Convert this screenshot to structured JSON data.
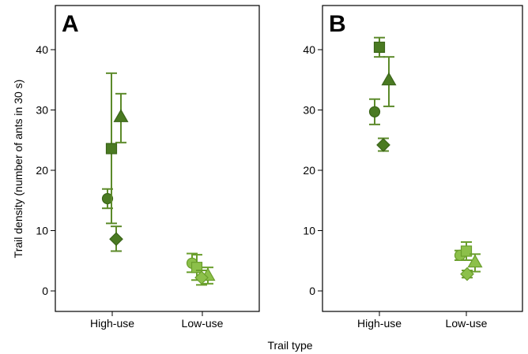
{
  "figure": {
    "ylabel": "Trail density (number of ants in 30 s)",
    "xlabel": "Trail type"
  },
  "colors": {
    "high_use": "#4a7a22",
    "high_use_stroke": "#3a6418",
    "low_use": "#8cc04a",
    "low_use_stroke": "#6a9e2c",
    "error_bar": "#5c8a2a",
    "axis": "#000000"
  },
  "chart_data": [
    {
      "panel": "A",
      "type": "scatter",
      "categories": [
        "High-use",
        "Low-use"
      ],
      "ylim": [
        0,
        45
      ],
      "yticks": [
        0,
        10,
        20,
        30,
        40
      ],
      "series": [
        {
          "marker": "circle",
          "points": [
            {
              "category": "High-use",
              "y": 15.3,
              "lower": 13.7,
              "upper": 16.9
            },
            {
              "category": "Low-use",
              "y": 4.6,
              "lower": 3.1,
              "upper": 6.2
            }
          ]
        },
        {
          "marker": "square",
          "points": [
            {
              "category": "High-use",
              "y": 23.6,
              "lower": 11.2,
              "upper": 36.1
            },
            {
              "category": "Low-use",
              "y": 3.9,
              "lower": 1.8,
              "upper": 6.0
            }
          ]
        },
        {
          "marker": "triangle",
          "points": [
            {
              "category": "High-use",
              "y": 28.9,
              "lower": 24.6,
              "upper": 32.7
            },
            {
              "category": "Low-use",
              "y": 2.6,
              "lower": 1.2,
              "upper": 3.9
            }
          ]
        },
        {
          "marker": "diamond",
          "points": [
            {
              "category": "High-use",
              "y": 8.6,
              "lower": 6.6,
              "upper": 10.7
            },
            {
              "category": "Low-use",
              "y": 2.2,
              "lower": 1.0,
              "upper": 3.4
            }
          ]
        }
      ]
    },
    {
      "panel": "B",
      "type": "scatter",
      "categories": [
        "High-use",
        "Low-use"
      ],
      "ylim": [
        0,
        45
      ],
      "yticks": [
        0,
        10,
        20,
        30,
        40
      ],
      "series": [
        {
          "marker": "circle",
          "points": [
            {
              "category": "High-use",
              "y": 29.7,
              "lower": 27.6,
              "upper": 31.8
            },
            {
              "category": "Low-use",
              "y": 5.9,
              "lower": 5.1,
              "upper": 6.7
            }
          ]
        },
        {
          "marker": "square",
          "points": [
            {
              "category": "High-use",
              "y": 40.4,
              "lower": 38.8,
              "upper": 42.0
            },
            {
              "category": "Low-use",
              "y": 6.6,
              "lower": 5.1,
              "upper": 8.1
            }
          ]
        },
        {
          "marker": "triangle",
          "points": [
            {
              "category": "High-use",
              "y": 35.0,
              "lower": 30.6,
              "upper": 38.8
            },
            {
              "category": "Low-use",
              "y": 4.8,
              "lower": 3.2,
              "upper": 6.1
            }
          ]
        },
        {
          "marker": "diamond",
          "points": [
            {
              "category": "High-use",
              "y": 24.2,
              "lower": 23.2,
              "upper": 25.3
            },
            {
              "category": "Low-use",
              "y": 2.8,
              "lower": 2.2,
              "upper": 3.4
            }
          ]
        }
      ]
    }
  ]
}
